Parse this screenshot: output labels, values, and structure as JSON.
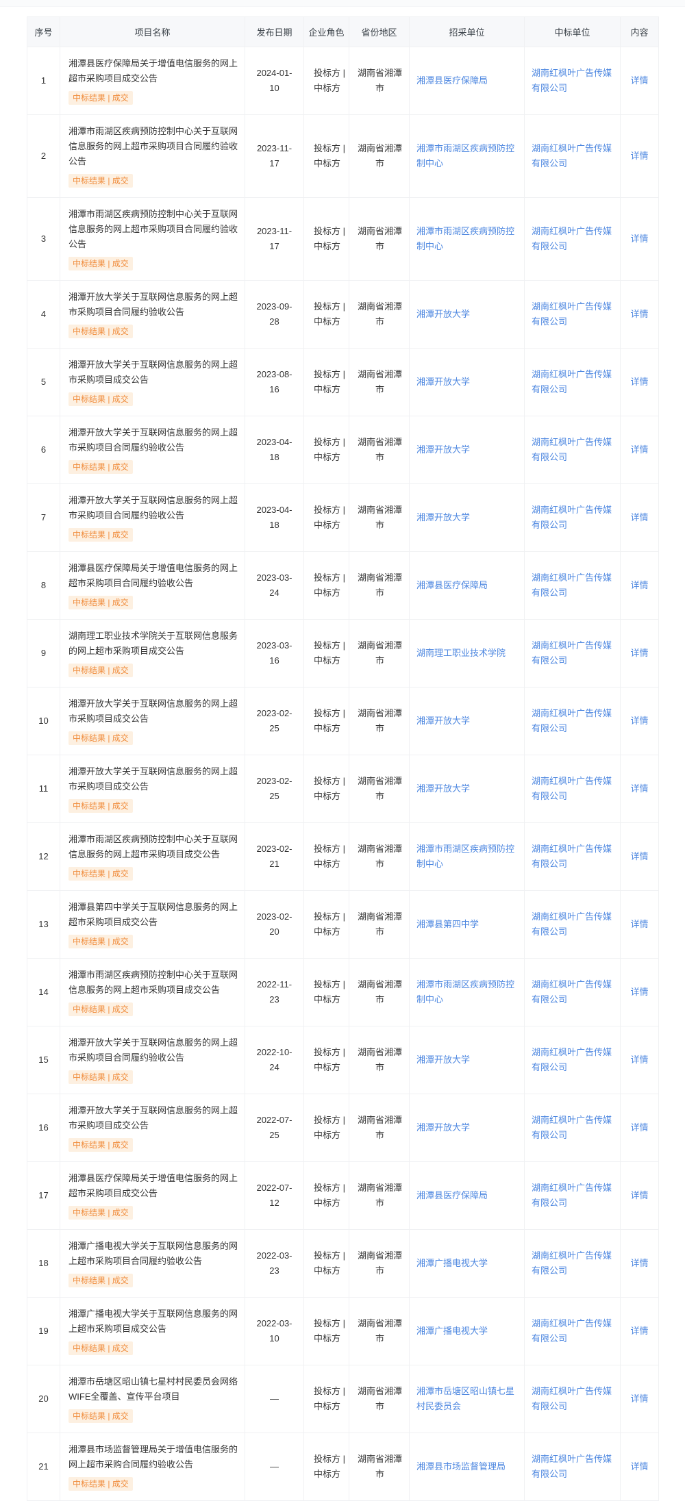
{
  "colors": {
    "link_blue": "#4d87e0",
    "tag_text": "#f08c3c",
    "tag_bg": "#fdf0e1",
    "header_bg": "#f7f8fa",
    "border": "#f0f1f3"
  },
  "table": {
    "headers": [
      "序号",
      "项目名称",
      "发布日期",
      "企业角色",
      "省份地区",
      "招采单位",
      "中标单位",
      "内容"
    ],
    "rows": [
      {
        "no": "1",
        "name": "湘潭县医疗保障局关于增值电信服务的网上超市采购项目成交公告",
        "tag": "中标结果 | 成交",
        "date": "2024-01-10",
        "role": "投标方 |\n中标方",
        "region": "湖南省湘潭市",
        "purchaser": "湘潭县医疗保障局",
        "winner": "湖南红枫叶广告传媒有限公司",
        "detail": "详情"
      },
      {
        "no": "2",
        "name": "湘潭市雨湖区疾病预防控制中心关于互联网信息服务的网上超市采购项目合同履约验收公告",
        "tag": "中标结果 | 成交",
        "date": "2023-11-17",
        "role": "投标方 |\n中标方",
        "region": "湖南省湘潭市",
        "purchaser": "湘潭市雨湖区疾病预防控制中心",
        "winner": "湖南红枫叶广告传媒有限公司",
        "detail": "详情"
      },
      {
        "no": "3",
        "name": "湘潭市雨湖区疾病预防控制中心关于互联网信息服务的网上超市采购项目合同履约验收公告",
        "tag": "中标结果 | 成交",
        "date": "2023-11-17",
        "role": "投标方 |\n中标方",
        "region": "湖南省湘潭市",
        "purchaser": "湘潭市雨湖区疾病预防控制中心",
        "winner": "湖南红枫叶广告传媒有限公司",
        "detail": "详情"
      },
      {
        "no": "4",
        "name": "湘潭开放大学关于互联网信息服务的网上超市采购项目合同履约验收公告",
        "tag": "中标结果 | 成交",
        "date": "2023-09-28",
        "role": "投标方 |\n中标方",
        "region": "湖南省湘潭市",
        "purchaser": "湘潭开放大学",
        "winner": "湖南红枫叶广告传媒有限公司",
        "detail": "详情"
      },
      {
        "no": "5",
        "name": "湘潭开放大学关于互联网信息服务的网上超市采购项目成交公告",
        "tag": "中标结果 | 成交",
        "date": "2023-08-16",
        "role": "投标方 |\n中标方",
        "region": "湖南省湘潭市",
        "purchaser": "湘潭开放大学",
        "winner": "湖南红枫叶广告传媒有限公司",
        "detail": "详情"
      },
      {
        "no": "6",
        "name": "湘潭开放大学关于互联网信息服务的网上超市采购项目合同履约验收公告",
        "tag": "中标结果 | 成交",
        "date": "2023-04-18",
        "role": "投标方 |\n中标方",
        "region": "湖南省湘潭市",
        "purchaser": "湘潭开放大学",
        "winner": "湖南红枫叶广告传媒有限公司",
        "detail": "详情"
      },
      {
        "no": "7",
        "name": "湘潭开放大学关于互联网信息服务的网上超市采购项目合同履约验收公告",
        "tag": "中标结果 | 成交",
        "date": "2023-04-18",
        "role": "投标方 |\n中标方",
        "region": "湖南省湘潭市",
        "purchaser": "湘潭开放大学",
        "winner": "湖南红枫叶广告传媒有限公司",
        "detail": "详情"
      },
      {
        "no": "8",
        "name": "湘潭县医疗保障局关于增值电信服务的网上超市采购项目合同履约验收公告",
        "tag": "中标结果 | 成交",
        "date": "2023-03-24",
        "role": "投标方 |\n中标方",
        "region": "湖南省湘潭市",
        "purchaser": "湘潭县医疗保障局",
        "winner": "湖南红枫叶广告传媒有限公司",
        "detail": "详情"
      },
      {
        "no": "9",
        "name": "湖南理工职业技术学院关于互联网信息服务的网上超市采购项目成交公告",
        "tag": "中标结果 | 成交",
        "date": "2023-03-16",
        "role": "投标方 |\n中标方",
        "region": "湖南省湘潭市",
        "purchaser": "湖南理工职业技术学院",
        "winner": "湖南红枫叶广告传媒有限公司",
        "detail": "详情"
      },
      {
        "no": "10",
        "name": "湘潭开放大学关于互联网信息服务的网上超市采购项目成交公告",
        "tag": "中标结果 | 成交",
        "date": "2023-02-25",
        "role": "投标方 |\n中标方",
        "region": "湖南省湘潭市",
        "purchaser": "湘潭开放大学",
        "winner": "湖南红枫叶广告传媒有限公司",
        "detail": "详情"
      },
      {
        "no": "11",
        "name": "湘潭开放大学关于互联网信息服务的网上超市采购项目成交公告",
        "tag": "中标结果 | 成交",
        "date": "2023-02-25",
        "role": "投标方 |\n中标方",
        "region": "湖南省湘潭市",
        "purchaser": "湘潭开放大学",
        "winner": "湖南红枫叶广告传媒有限公司",
        "detail": "详情"
      },
      {
        "no": "12",
        "name": "湘潭市雨湖区疾病预防控制中心关于互联网信息服务的网上超市采购项目成交公告",
        "tag": "中标结果 | 成交",
        "date": "2023-02-21",
        "role": "投标方 |\n中标方",
        "region": "湖南省湘潭市",
        "purchaser": "湘潭市雨湖区疾病预防控制中心",
        "winner": "湖南红枫叶广告传媒有限公司",
        "detail": "详情"
      },
      {
        "no": "13",
        "name": "湘潭县第四中学关于互联网信息服务的网上超市采购项目成交公告",
        "tag": "中标结果 | 成交",
        "date": "2023-02-20",
        "role": "投标方 |\n中标方",
        "region": "湖南省湘潭市",
        "purchaser": "湘潭县第四中学",
        "winner": "湖南红枫叶广告传媒有限公司",
        "detail": "详情"
      },
      {
        "no": "14",
        "name": "湘潭市雨湖区疾病预防控制中心关于互联网信息服务的网上超市采购项目成交公告",
        "tag": "中标结果 | 成交",
        "date": "2022-11-23",
        "role": "投标方 |\n中标方",
        "region": "湖南省湘潭市",
        "purchaser": "湘潭市雨湖区疾病预防控制中心",
        "winner": "湖南红枫叶广告传媒有限公司",
        "detail": "详情"
      },
      {
        "no": "15",
        "name": "湘潭开放大学关于互联网信息服务的网上超市采购项目合同履约验收公告",
        "tag": "中标结果 | 成交",
        "date": "2022-10-24",
        "role": "投标方 |\n中标方",
        "region": "湖南省湘潭市",
        "purchaser": "湘潭开放大学",
        "winner": "湖南红枫叶广告传媒有限公司",
        "detail": "详情"
      },
      {
        "no": "16",
        "name": "湘潭开放大学关于互联网信息服务的网上超市采购项目成交公告",
        "tag": "中标结果 | 成交",
        "date": "2022-07-25",
        "role": "投标方 |\n中标方",
        "region": "湖南省湘潭市",
        "purchaser": "湘潭开放大学",
        "winner": "湖南红枫叶广告传媒有限公司",
        "detail": "详情"
      },
      {
        "no": "17",
        "name": "湘潭县医疗保障局关于增值电信服务的网上超市采购项目成交公告",
        "tag": "中标结果 | 成交",
        "date": "2022-07-12",
        "role": "投标方 |\n中标方",
        "region": "湖南省湘潭市",
        "purchaser": "湘潭县医疗保障局",
        "winner": "湖南红枫叶广告传媒有限公司",
        "detail": "详情"
      },
      {
        "no": "18",
        "name": "湘潭广播电视大学关于互联网信息服务的网上超市采购项目合同履约验收公告",
        "tag": "中标结果 | 成交",
        "date": "2022-03-23",
        "role": "投标方 |\n中标方",
        "region": "湖南省湘潭市",
        "purchaser": "湘潭广播电视大学",
        "winner": "湖南红枫叶广告传媒有限公司",
        "detail": "详情"
      },
      {
        "no": "19",
        "name": "湘潭广播电视大学关于互联网信息服务的网上超市采购项目成交公告",
        "tag": "中标结果 | 成交",
        "date": "2022-03-10",
        "role": "投标方 |\n中标方",
        "region": "湖南省湘潭市",
        "purchaser": "湘潭广播电视大学",
        "winner": "湖南红枫叶广告传媒有限公司",
        "detail": "详情"
      },
      {
        "no": "20",
        "name": "湘潭市岳塘区昭山镇七星村村民委员会网络WIFE全覆盖、宣传平台项目",
        "tag": "中标结果 | 成交",
        "date": "—",
        "role": "投标方 |\n中标方",
        "region": "湖南省湘潭市",
        "purchaser": "湘潭市岳塘区昭山镇七星村民委员会",
        "winner": "湖南红枫叶广告传媒有限公司",
        "detail": "详情"
      },
      {
        "no": "21",
        "name": "湘潭县市场监督管理局关于增值电信服务的网上超市采购合同履约验收公告",
        "tag": "中标结果 | 成交",
        "date": "—",
        "role": "投标方 |\n中标方",
        "region": "湖南省湘潭市",
        "purchaser": "湘潭县市场监督管理局",
        "winner": "湖南红枫叶广告传媒有限公司",
        "detail": "详情"
      }
    ]
  }
}
